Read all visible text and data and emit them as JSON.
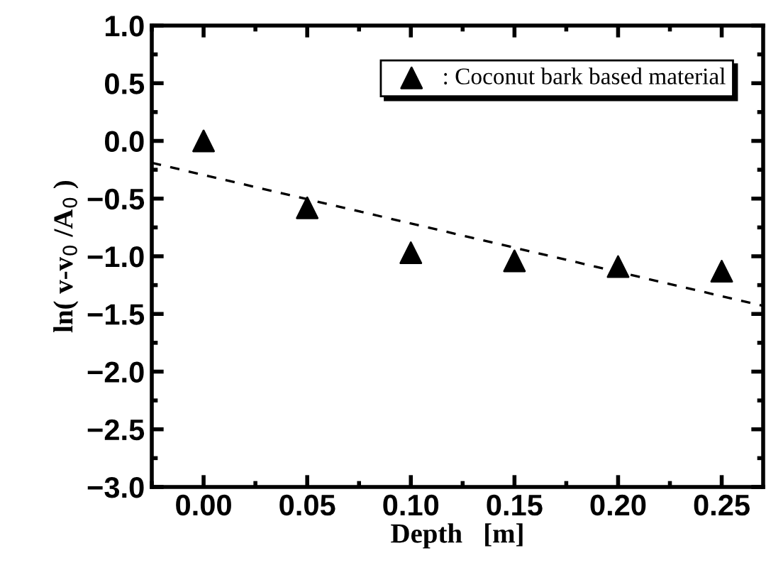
{
  "chart_data": {
    "type": "scatter",
    "xlabel": "Depth   [m]",
    "ylabel": "ln( v-v$_{0}$ /A$_{0}$ )",
    "x": [
      0.0,
      0.05,
      0.1,
      0.15,
      0.2,
      0.25
    ],
    "series": [
      {
        "name": ": Coconut bark based material",
        "color": "#000000",
        "values": [
          0.0,
          -0.58,
          -0.97,
          -1.04,
          -1.09,
          -1.13
        ],
        "marker": "triangle"
      },
      {
        "type": "line",
        "x": [
          -0.025,
          0.27
        ],
        "values": [
          -0.19,
          -1.43
        ],
        "color": "#000000",
        "line_style": "dashed",
        "marker": "none"
      }
    ],
    "xlim": [
      -0.025,
      0.27
    ],
    "ylim": [
      -3.0,
      1.0
    ],
    "xticks": [
      {
        "value": 0,
        "label": "0.00"
      },
      {
        "value": 0.05,
        "label": "0.05"
      },
      {
        "value": 0.1,
        "label": "0.10"
      },
      {
        "value": 0.15,
        "label": "0.15"
      },
      {
        "value": 0.2,
        "label": "0.20"
      },
      {
        "value": 0.25,
        "label": "0.25"
      }
    ],
    "yticks": [
      {
        "value": 1,
        "label": "1.0"
      },
      {
        "value": 0.5,
        "label": "0.5"
      },
      {
        "value": 0,
        "label": "0.0"
      },
      {
        "value": -0.5,
        "label": "−0.5"
      },
      {
        "value": -1,
        "label": "−1.0"
      },
      {
        "value": -1.5,
        "label": "−1.5"
      },
      {
        "value": -2,
        "label": "−2.0"
      },
      {
        "value": -2.5,
        "label": "−2.5"
      },
      {
        "value": -3,
        "label": "−3.0"
      }
    ],
    "grid": false,
    "legend": "top right"
  }
}
